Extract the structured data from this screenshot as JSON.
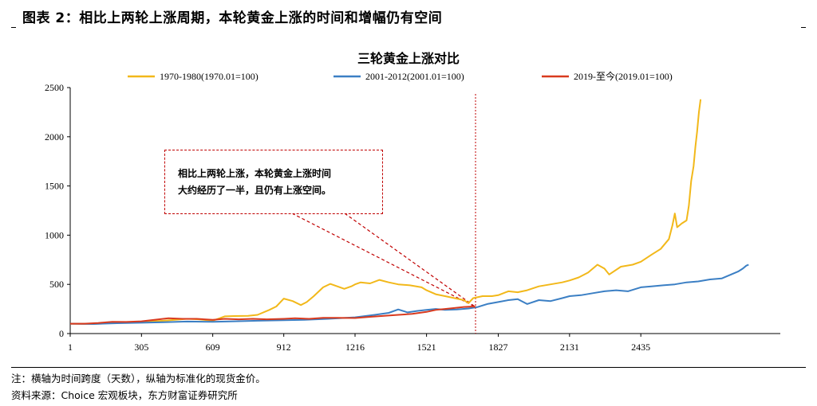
{
  "figure": {
    "title": "图表 2：相比上两轮上涨周期，本轮黄金上涨的时间和增幅仍有空间",
    "note": "注：横轴为时间跨度（天数），纵轴为标准化的现货金价。",
    "source": "资料来源：Choice 宏观板块，东方财富证券研究所"
  },
  "callout": {
    "line1": "相比上两轮上涨，本轮黄金上涨时间",
    "line2": "大约经历了一半，且仍有上涨空间。"
  },
  "chart_data": {
    "type": "line",
    "title": "三轮黄金上涨对比",
    "xlabel": "",
    "ylabel": "",
    "ylim": [
      0,
      2500
    ],
    "xlim": [
      1,
      3030
    ],
    "x_ticks": [
      1,
      305,
      609,
      912,
      1216,
      1521,
      1827,
      2131,
      2435
    ],
    "y_ticks": [
      0,
      500,
      1000,
      1500,
      2000,
      2500
    ],
    "grid": false,
    "legend_position": "top",
    "vline_x": 1730,
    "series": [
      {
        "name": "1970-1980(1970.01=100)",
        "color": "#f2b81a",
        "points": [
          [
            1,
            100
          ],
          [
            100,
            98
          ],
          [
            200,
            110
          ],
          [
            305,
            118
          ],
          [
            400,
            130
          ],
          [
            500,
            150
          ],
          [
            550,
            145
          ],
          [
            609,
            130
          ],
          [
            660,
            175
          ],
          [
            700,
            178
          ],
          [
            760,
            180
          ],
          [
            800,
            190
          ],
          [
            850,
            240
          ],
          [
            880,
            275
          ],
          [
            912,
            355
          ],
          [
            950,
            330
          ],
          [
            985,
            290
          ],
          [
            1010,
            320
          ],
          [
            1040,
            380
          ],
          [
            1080,
            470
          ],
          [
            1110,
            505
          ],
          [
            1140,
            480
          ],
          [
            1170,
            455
          ],
          [
            1200,
            480
          ],
          [
            1216,
            500
          ],
          [
            1240,
            520
          ],
          [
            1280,
            510
          ],
          [
            1320,
            545
          ],
          [
            1360,
            520
          ],
          [
            1400,
            500
          ],
          [
            1450,
            490
          ],
          [
            1500,
            470
          ],
          [
            1521,
            440
          ],
          [
            1560,
            400
          ],
          [
            1600,
            380
          ],
          [
            1640,
            360
          ],
          [
            1680,
            340
          ],
          [
            1700,
            310
          ],
          [
            1720,
            360
          ],
          [
            1760,
            380
          ],
          [
            1800,
            380
          ],
          [
            1827,
            390
          ],
          [
            1870,
            430
          ],
          [
            1910,
            420
          ],
          [
            1950,
            440
          ],
          [
            2000,
            480
          ],
          [
            2050,
            500
          ],
          [
            2100,
            520
          ],
          [
            2131,
            540
          ],
          [
            2170,
            570
          ],
          [
            2210,
            620
          ],
          [
            2250,
            700
          ],
          [
            2280,
            660
          ],
          [
            2300,
            600
          ],
          [
            2350,
            680
          ],
          [
            2400,
            700
          ],
          [
            2435,
            730
          ],
          [
            2480,
            800
          ],
          [
            2520,
            860
          ],
          [
            2555,
            960
          ],
          [
            2570,
            1100
          ],
          [
            2580,
            1220
          ],
          [
            2590,
            1080
          ],
          [
            2610,
            1120
          ],
          [
            2630,
            1150
          ],
          [
            2640,
            1300
          ],
          [
            2650,
            1550
          ],
          [
            2660,
            1700
          ],
          [
            2668,
            1900
          ],
          [
            2675,
            2050
          ],
          [
            2683,
            2250
          ],
          [
            2690,
            2380
          ]
        ]
      },
      {
        "name": "2001-2012(2001.01=100)",
        "color": "#3b7fc4",
        "points": [
          [
            1,
            100
          ],
          [
            100,
            97
          ],
          [
            200,
            105
          ],
          [
            305,
            110
          ],
          [
            400,
            115
          ],
          [
            500,
            122
          ],
          [
            609,
            120
          ],
          [
            700,
            125
          ],
          [
            800,
            130
          ],
          [
            912,
            135
          ],
          [
            1000,
            140
          ],
          [
            1100,
            150
          ],
          [
            1216,
            165
          ],
          [
            1300,
            190
          ],
          [
            1360,
            210
          ],
          [
            1400,
            245
          ],
          [
            1440,
            215
          ],
          [
            1480,
            230
          ],
          [
            1521,
            240
          ],
          [
            1560,
            250
          ],
          [
            1600,
            240
          ],
          [
            1650,
            245
          ],
          [
            1700,
            255
          ],
          [
            1740,
            270
          ],
          [
            1780,
            300
          ],
          [
            1827,
            320
          ],
          [
            1870,
            340
          ],
          [
            1910,
            350
          ],
          [
            1950,
            300
          ],
          [
            2000,
            340
          ],
          [
            2050,
            330
          ],
          [
            2100,
            360
          ],
          [
            2131,
            380
          ],
          [
            2180,
            390
          ],
          [
            2230,
            410
          ],
          [
            2280,
            430
          ],
          [
            2330,
            440
          ],
          [
            2380,
            430
          ],
          [
            2435,
            470
          ],
          [
            2480,
            480
          ],
          [
            2530,
            490
          ],
          [
            2580,
            500
          ],
          [
            2630,
            520
          ],
          [
            2680,
            530
          ],
          [
            2730,
            550
          ],
          [
            2780,
            560
          ],
          [
            2820,
            600
          ],
          [
            2850,
            630
          ],
          [
            2870,
            660
          ],
          [
            2885,
            690
          ],
          [
            2895,
            700
          ]
        ]
      },
      {
        "name": "2019-至今(2019.01=100)",
        "color": "#d93a1e",
        "points": [
          [
            1,
            100
          ],
          [
            60,
            100
          ],
          [
            120,
            108
          ],
          [
            180,
            120
          ],
          [
            240,
            118
          ],
          [
            305,
            125
          ],
          [
            360,
            140
          ],
          [
            420,
            155
          ],
          [
            480,
            150
          ],
          [
            540,
            150
          ],
          [
            609,
            140
          ],
          [
            660,
            150
          ],
          [
            720,
            145
          ],
          [
            780,
            150
          ],
          [
            840,
            145
          ],
          [
            912,
            150
          ],
          [
            960,
            155
          ],
          [
            1020,
            150
          ],
          [
            1080,
            160
          ],
          [
            1140,
            160
          ],
          [
            1216,
            158
          ],
          [
            1280,
            170
          ],
          [
            1340,
            180
          ],
          [
            1400,
            190
          ],
          [
            1460,
            200
          ],
          [
            1521,
            220
          ],
          [
            1560,
            240
          ],
          [
            1600,
            250
          ],
          [
            1640,
            260
          ],
          [
            1680,
            270
          ],
          [
            1720,
            275
          ],
          [
            1730,
            270
          ]
        ]
      }
    ]
  }
}
